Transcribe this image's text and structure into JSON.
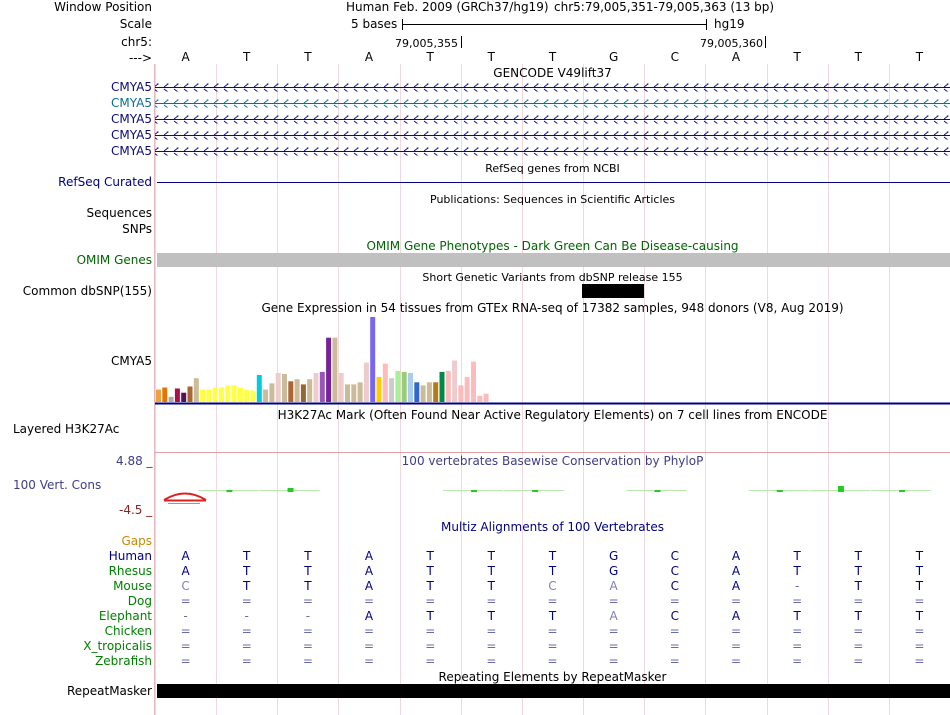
{
  "header": {
    "window_position_label": "Window Position",
    "scale_label": "Scale",
    "chrom_label": "chr5:",
    "strand_label": "--->",
    "assembly": "Human Feb. 2009 (GRCh37/hg19)",
    "position": "chr5:79,005,351-79,005,363 (13 bp)",
    "scale_bases": "5 bases",
    "db": "hg19",
    "coord_left": "79,005,355",
    "coord_right": "79,005,360"
  },
  "bases": [
    "A",
    "T",
    "T",
    "A",
    "T",
    "T",
    "T",
    "G",
    "C",
    "A",
    "T",
    "T",
    "T"
  ],
  "tracks": {
    "gencode": {
      "title": "GENCODE V49lift37",
      "genes": [
        "CMYA5",
        "CMYA5",
        "CMYA5",
        "CMYA5",
        "CMYA5"
      ]
    },
    "refseq": {
      "title": "RefSeq genes from NCBI",
      "label": "RefSeq Curated"
    },
    "publications": {
      "title": "Publications: Sequences in Scientific Articles",
      "labels": [
        "Sequences",
        "SNPs"
      ]
    },
    "omim": {
      "title": "OMIM Gene Phenotypes - Dark Green Can Be Disease-causing",
      "label": "OMIM Genes"
    },
    "dbsnp": {
      "title": "Short Genetic Variants from dbSNP release 155",
      "label": "Common dbSNP(155)"
    },
    "gtex": {
      "title": "Gene Expression in 54 tissues from GTEx RNA-seq of 17382 samples, 948 donors (V8, Aug 2019)",
      "label": "CMYA5",
      "values": [
        12,
        14,
        5,
        13,
        9,
        15,
        23,
        12,
        12,
        14,
        14,
        16,
        16,
        14,
        12,
        11,
        26,
        12,
        18,
        28,
        27,
        20,
        22,
        17,
        22,
        28,
        29,
        62,
        62,
        28,
        17,
        17,
        19,
        38,
        82,
        24,
        37,
        23,
        30,
        29,
        28,
        19,
        16,
        19,
        19,
        29,
        30,
        40,
        16,
        24,
        39,
        6,
        8,
        0
      ],
      "colors": [
        "#f0a040",
        "#dd7700",
        "#aaaaaa",
        "#aa1144",
        "#551155",
        "#aa6633",
        "#ccbb99",
        "#ffff44",
        "#ffff44",
        "#ffff44",
        "#ffff44",
        "#ffff44",
        "#ffff44",
        "#ffff44",
        "#ffff44",
        "#ffff44",
        "#00ccdd",
        "#ccbb99",
        "#ccbb99",
        "#eecccc",
        "#ccbb99",
        "#aa6633",
        "#ccbb99",
        "#996633",
        "#ccbb99",
        "#eecccc",
        "#9955bb",
        "#772299",
        "#ccbb99",
        "#eecccc",
        "#ccbb99",
        "#ccbb99",
        "#ccbb99",
        "#eecccc",
        "#7766ee",
        "#ffcc00",
        "#ffbbbb",
        "#cccccc",
        "#aaee99",
        "#99cc77",
        "#aaccee",
        "#3366cc",
        "#ccbb99",
        "#ccbb99",
        "#bb7711",
        "#008844",
        "#ffbbbb",
        "#eecccc",
        "#ffbbbb",
        "#ffbbbb",
        "#ffbbbb",
        "#ffbbbb",
        "#ffbbbb",
        "#ffbbbb"
      ]
    },
    "h3k27ac": {
      "title": "H3K27Ac Mark (Often Found Near Active Regulatory Elements) on 7 cell lines from ENCODE",
      "label": "Layered H3K27Ac"
    },
    "phylop": {
      "title": "100 vertebrates Basewise Conservation by PhyloP",
      "label": "100 Vert. Cons",
      "ymax": "4.88 _",
      "ymin": "-4.5 _"
    },
    "multiz": {
      "title": "Multiz Alignments of 100 Vertebrates",
      "gaps_label": "Gaps",
      "species": [
        {
          "name": "Human",
          "row": [
            "A",
            "T",
            "T",
            "A",
            "T",
            "T",
            "T",
            "G",
            "C",
            "A",
            "T",
            "T",
            "T"
          ]
        },
        {
          "name": "Rhesus",
          "row": [
            "A",
            "T",
            "T",
            "A",
            "T",
            "T",
            "T",
            "G",
            "C",
            "A",
            "T",
            "T",
            "T"
          ]
        },
        {
          "name": "Mouse",
          "row": [
            "C",
            "T",
            "T",
            "A",
            "T",
            "T",
            "C",
            "A",
            "C",
            "A",
            "-",
            "T",
            "T"
          ]
        },
        {
          "name": "Dog",
          "row": [
            "=",
            "=",
            "=",
            "=",
            "=",
            "=",
            "=",
            "=",
            "=",
            "=",
            "=",
            "=",
            "="
          ]
        },
        {
          "name": "Elephant",
          "row": [
            "-",
            "-",
            "-",
            "A",
            "T",
            "T",
            "T",
            "A",
            "C",
            "A",
            "T",
            "T",
            "T"
          ]
        },
        {
          "name": "Chicken",
          "row": [
            "=",
            "=",
            "=",
            "=",
            "=",
            "=",
            "=",
            "=",
            "=",
            "=",
            "=",
            "=",
            "="
          ]
        },
        {
          "name": "X_tropicalis",
          "row": [
            "=",
            "=",
            "=",
            "=",
            "=",
            "=",
            "=",
            "=",
            "=",
            "=",
            "=",
            "=",
            "="
          ]
        },
        {
          "name": "Zebrafish",
          "row": [
            "=",
            "=",
            "=",
            "=",
            "=",
            "=",
            "=",
            "=",
            "=",
            "=",
            "=",
            "=",
            "="
          ]
        }
      ]
    },
    "repeatmasker": {
      "title": "Repeating Elements by RepeatMasker",
      "label": "RepeatMasker"
    }
  },
  "colors": {
    "label_blue": "#000080",
    "gene_blue": "#0c0c78",
    "gene_teal": "#0c6e96",
    "omim_green": "#006400",
    "phylop_blue": "#3d3d8a",
    "phylop_red": "#8a2222",
    "gaps_orange": "#cc8800",
    "species_green": "#008000",
    "multiz_blue": "#000080"
  }
}
